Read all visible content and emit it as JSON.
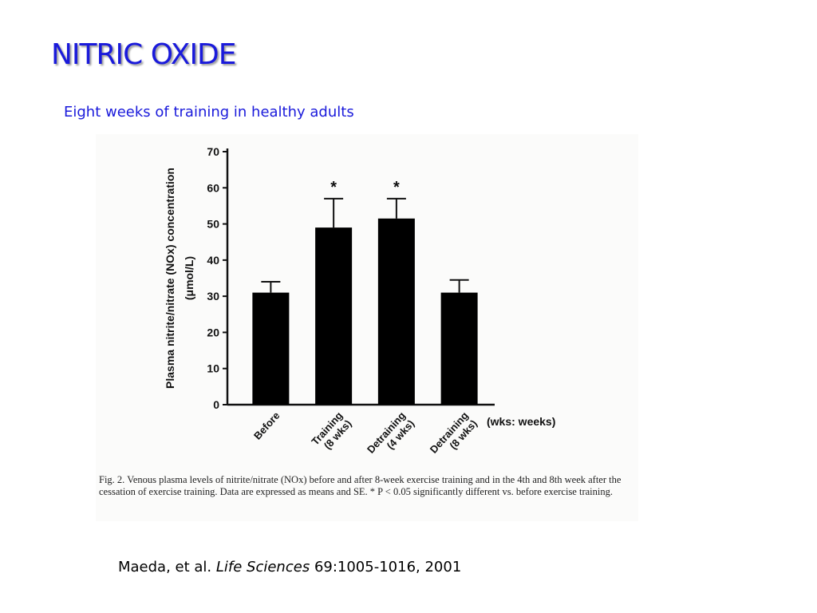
{
  "slide": {
    "title": "NITRIC OXIDE",
    "subtitle": "Eight weeks of training in healthy adults",
    "title_color": "#1a1adb"
  },
  "chart_data": {
    "type": "bar",
    "categories": [
      "Before",
      "Training\n(8 wks)",
      "Detraining\n(4 wks)",
      "Detraining\n(8 wks)"
    ],
    "values": [
      31,
      49,
      51.5,
      31
    ],
    "errors": [
      3,
      8,
      5.5,
      3.5
    ],
    "significant": [
      false,
      true,
      true,
      false
    ],
    "significance_marker": "*",
    "ylabel_line1": "Plasma nitrite/nitrate (NOx) concentration",
    "ylabel_line2": "(μmol/L)",
    "xnote": "(wks: weeks)",
    "ylim": [
      0,
      70
    ],
    "yticks": [
      0,
      10,
      20,
      30,
      40,
      50,
      60,
      70
    ],
    "bar_color": "#000000",
    "grid": false
  },
  "figure": {
    "caption": "Fig. 2.  Venous plasma levels of nitrite/nitrate (NOx) before and after 8-week exercise training and in the 4th and 8th week after the cessation of exercise training. Data are expressed as means and SE. * P < 0.05 significantly different vs. before exercise training."
  },
  "citation": {
    "authors": "Maeda, et al.",
    "journal": "Life Sciences",
    "details": "69:1005-1016, 2001"
  }
}
